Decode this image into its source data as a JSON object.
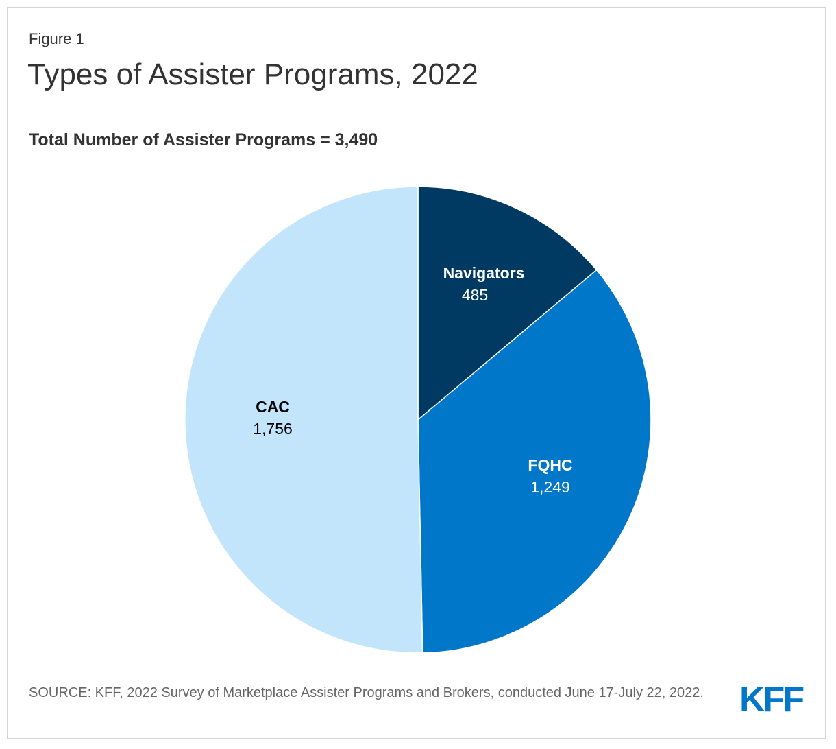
{
  "header": {
    "figure_label": "Figure 1",
    "title": "Types of Assister Programs, 2022",
    "subtitle": "Total Number of Assister Programs = 3,490"
  },
  "footer": {
    "source": "SOURCE: KFF, 2022 Survey of Marketplace Assister Programs and Brokers, conducted June 17-July 22, 2022.",
    "logo_text": "KFF"
  },
  "colors": {
    "navigators": "#003a63",
    "fqhc": "#0077c8",
    "cac": "#c3e5fc",
    "label_light": "#ffffff",
    "label_dark": "#000000",
    "logo": "#0077c8"
  },
  "chart_data": {
    "type": "pie",
    "title": "Types of Assister Programs, 2022",
    "subtitle": "Total Number of Assister Programs = 3,490",
    "total": 3490,
    "slices": [
      {
        "label": "Navigators",
        "value": 485,
        "value_label": "485",
        "color": "#003a63",
        "label_color": "#ffffff"
      },
      {
        "label": "FQHC",
        "value": 1249,
        "value_label": "1,249",
        "color": "#0077c8",
        "label_color": "#ffffff"
      },
      {
        "label": "CAC",
        "value": 1756,
        "value_label": "1,756",
        "color": "#c3e5fc",
        "label_color": "#000000"
      }
    ],
    "start_angle": "12 o'clock",
    "direction": "clockwise"
  }
}
